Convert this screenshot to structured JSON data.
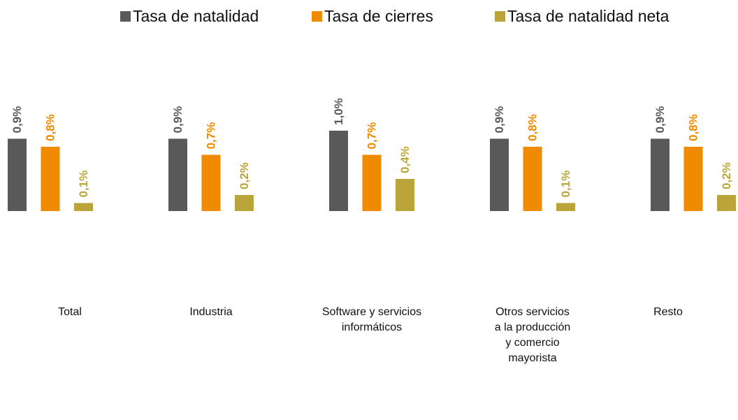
{
  "chart_data": {
    "type": "bar",
    "categories": [
      "Total",
      "Industria",
      "Software y servicios informáticos",
      "Otros servicios a la producción y comercio mayorista",
      "Resto"
    ],
    "series": [
      {
        "name": "Tasa de natalidad",
        "color": "#595959",
        "values": [
          0.9,
          0.9,
          1.0,
          0.9,
          0.9
        ],
        "value_labels": [
          "0,9%",
          "0,9%",
          "1,0%",
          "0,9%",
          "0,9%"
        ]
      },
      {
        "name": "Tasa de cierres",
        "color": "#f08a00",
        "values": [
          0.8,
          0.7,
          0.7,
          0.8,
          0.8
        ],
        "value_labels": [
          "0,8%",
          "0,7%",
          "0,7%",
          "0,8%",
          "0,8%"
        ]
      },
      {
        "name": "Tasa de natalidad neta",
        "color": "#bba53a",
        "values": [
          0.1,
          0.2,
          0.4,
          0.1,
          0.2
        ],
        "value_labels": [
          "0,1%",
          "0,2%",
          "0,4%",
          "0,1%",
          "0,2%"
        ]
      }
    ],
    "ylim": [
      0,
      2.5
    ],
    "legend": "top"
  }
}
